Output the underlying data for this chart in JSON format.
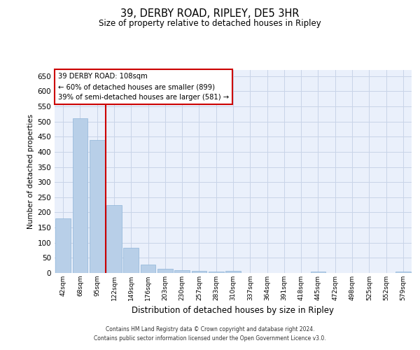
{
  "title": "39, DERBY ROAD, RIPLEY, DE5 3HR",
  "subtitle": "Size of property relative to detached houses in Ripley",
  "xlabel": "Distribution of detached houses by size in Ripley",
  "ylabel": "Number of detached properties",
  "footer1": "Contains HM Land Registry data © Crown copyright and database right 2024.",
  "footer2": "Contains public sector information licensed under the Open Government Licence v3.0.",
  "annotation_line1": "39 DERBY ROAD: 108sqm",
  "annotation_line2": "← 60% of detached houses are smaller (899)",
  "annotation_line3": "39% of semi-detached houses are larger (581) →",
  "bar_color": "#b8cfe8",
  "bar_edge_color": "#8eb4d8",
  "red_line_color": "#cc0000",
  "background_color": "#eaf0fb",
  "grid_color": "#c8d4e8",
  "categories": [
    "42sqm",
    "68sqm",
    "95sqm",
    "122sqm",
    "149sqm",
    "176sqm",
    "203sqm",
    "230sqm",
    "257sqm",
    "283sqm",
    "310sqm",
    "337sqm",
    "364sqm",
    "391sqm",
    "418sqm",
    "445sqm",
    "472sqm",
    "498sqm",
    "525sqm",
    "552sqm",
    "579sqm"
  ],
  "values": [
    180,
    510,
    440,
    225,
    83,
    28,
    15,
    10,
    7,
    5,
    7,
    0,
    0,
    0,
    0,
    5,
    0,
    0,
    0,
    0,
    5
  ],
  "red_line_x": 2.5,
  "ylim": [
    0,
    670
  ],
  "yticks": [
    0,
    50,
    100,
    150,
    200,
    250,
    300,
    350,
    400,
    450,
    500,
    550,
    600,
    650
  ]
}
